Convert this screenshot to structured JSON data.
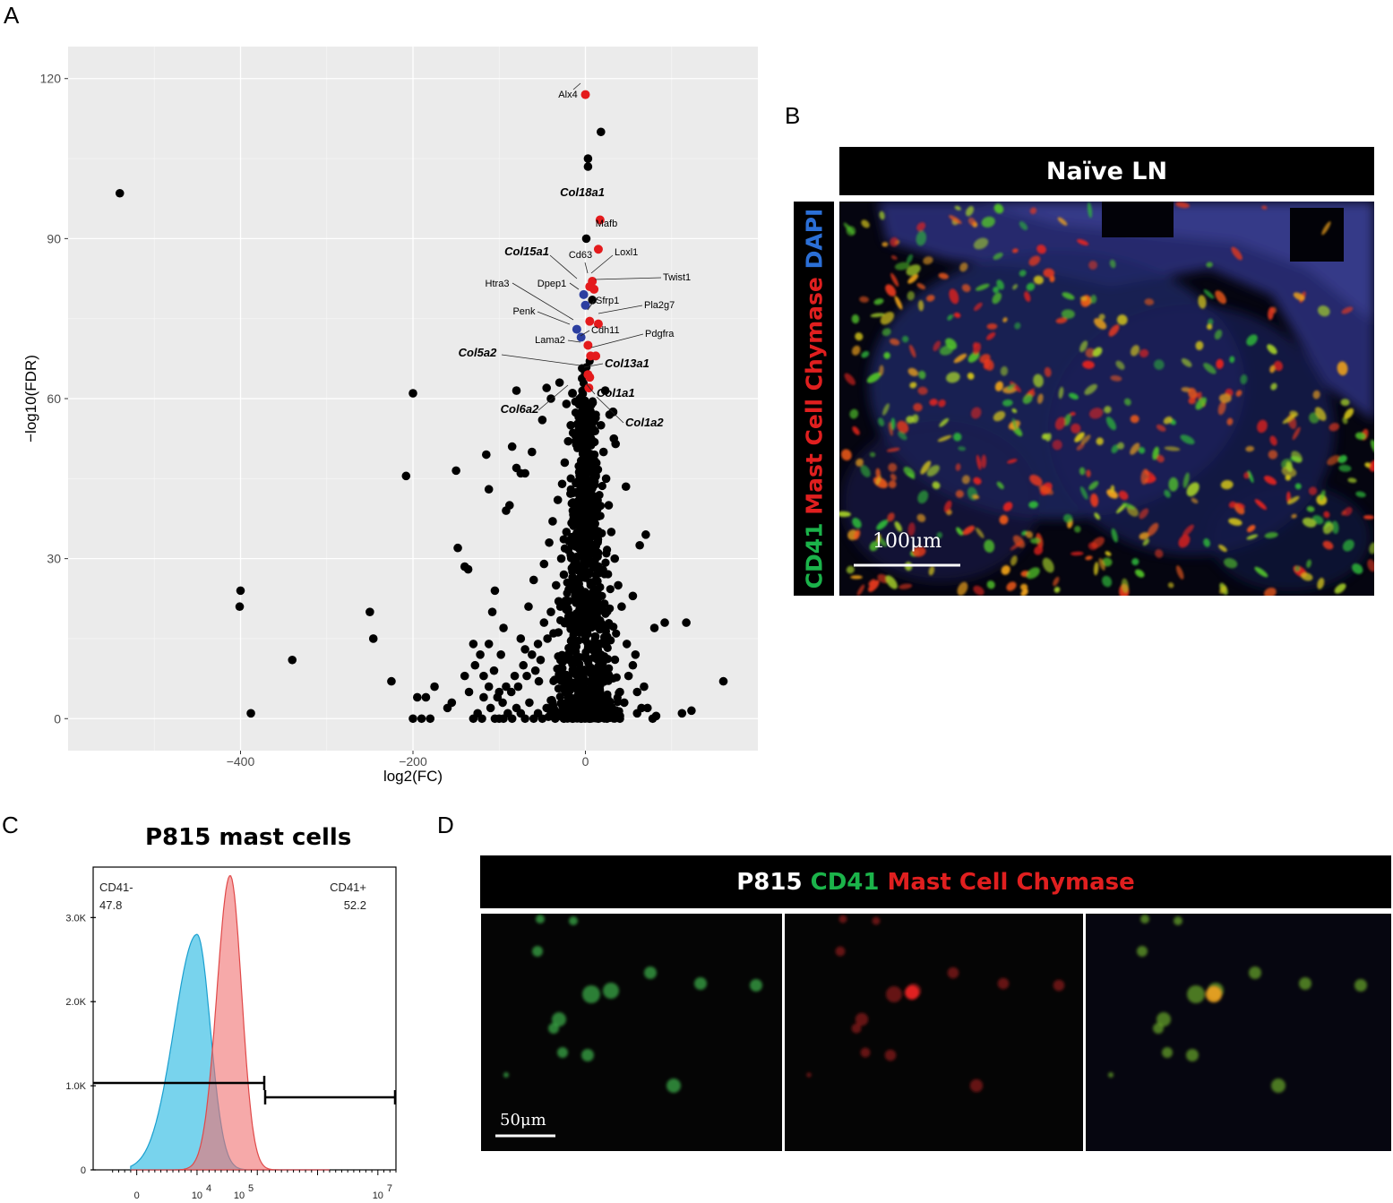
{
  "panels": {
    "a_letter": "A",
    "b_letter": "B",
    "c_letter": "C",
    "d_letter": "D"
  },
  "panel_b": {
    "header": "Naïve LN",
    "side_label_parts": [
      {
        "text": "CD41 ",
        "color": "#1bb34a"
      },
      {
        "text": "Mast Cell Chymase ",
        "color": "#e01f1f"
      },
      {
        "text": "DAPI",
        "color": "#2b6fd6"
      }
    ],
    "scale_label": "100μm"
  },
  "panel_c": {
    "title": "P815 mast cells",
    "gate_left_name": "CD41-",
    "gate_left_value": "47.8",
    "gate_right_name": "CD41+",
    "gate_right_value": "52.2",
    "y_ticks": [
      "0",
      "1.0K",
      "2.0K",
      "3.0K"
    ],
    "x_ticks": [
      {
        "base": "0",
        "exp": ""
      },
      {
        "base": "10",
        "exp": "4"
      },
      {
        "base": "10",
        "exp": "5"
      },
      {
        "base": "10",
        "exp": "7"
      }
    ],
    "colors": {
      "negative": "#3ec1e6",
      "positive": "#f07070"
    }
  },
  "panel_d": {
    "header_parts": [
      {
        "text": "P815 ",
        "color": "#ffffff"
      },
      {
        "text": "CD41 ",
        "color": "#1bb34a"
      },
      {
        "text": "Mast Cell Chymase",
        "color": "#e01f1f"
      }
    ],
    "scale_label": "50μm"
  },
  "chart_data": [
    {
      "type": "scatter",
      "title": "",
      "xlabel": "log2(FC)",
      "ylabel": "−log10(FDR)",
      "xlim": [
        -600,
        200
      ],
      "ylim": [
        -6,
        126
      ],
      "x_ticks": [
        -400,
        -200,
        0
      ],
      "y_ticks": [
        0,
        30,
        60,
        90,
        120
      ],
      "grid": true,
      "colors": {
        "default": "#000000",
        "highlight_red": "#e41a1c",
        "highlight_blue": "#2c3fa0"
      },
      "highlighted_genes": [
        {
          "label": "Alx4",
          "x": 0,
          "y": 117,
          "color": "red",
          "bold": false
        },
        {
          "label": "Col18a1",
          "x": 17,
          "y": 93.5,
          "color": "red",
          "bold": true
        },
        {
          "label": "Mafb",
          "x": 15,
          "y": 88,
          "color": "red",
          "bold": false
        },
        {
          "label": "Loxl1",
          "x": 8,
          "y": 82,
          "color": "red",
          "bold": false
        },
        {
          "label": "Cd63",
          "x": 5,
          "y": 81,
          "color": "red",
          "bold": false
        },
        {
          "label": "Col15a1",
          "x": -2,
          "y": 79.5,
          "color": "blue",
          "bold": true
        },
        {
          "label": "Twist1",
          "x": 10,
          "y": 80.5,
          "color": "red",
          "bold": false
        },
        {
          "label": "Htra3",
          "x": -10,
          "y": 73,
          "color": "blue",
          "bold": false
        },
        {
          "label": "Dpep1",
          "x": 0,
          "y": 77.5,
          "color": "blue",
          "bold": false
        },
        {
          "label": "Sfrp1",
          "x": 5,
          "y": 74.5,
          "color": "red",
          "bold": false
        },
        {
          "label": "Pla2g7",
          "x": 15,
          "y": 74,
          "color": "red",
          "bold": false
        },
        {
          "label": "Penk",
          "x": -5,
          "y": 71.5,
          "color": "blue",
          "bold": false
        },
        {
          "label": "Cdh11",
          "x": 3,
          "y": 70,
          "color": "red",
          "bold": false
        },
        {
          "label": "Lama2",
          "x": 6,
          "y": 68,
          "color": "red",
          "bold": false
        },
        {
          "label": "Pdgfra",
          "x": 12,
          "y": 68,
          "color": "red",
          "bold": false
        },
        {
          "label": "Col5a2",
          "x": 3,
          "y": 64.5,
          "color": "red",
          "bold": true
        },
        {
          "label": "Col13a1",
          "x": 5,
          "y": 64,
          "color": "red",
          "bold": true
        },
        {
          "label": "Col1a1",
          "x": 4,
          "y": 62,
          "color": "red",
          "bold": true
        },
        {
          "label": "Col6a2",
          "x": -15,
          "y": 61,
          "color": "black",
          "bold": true
        },
        {
          "label": "Col1a2",
          "x": 32,
          "y": 57.5,
          "color": "black",
          "bold": true
        }
      ],
      "points": [
        [
          -540,
          98.5
        ],
        [
          -200,
          61
        ],
        [
          -208,
          45.5
        ],
        [
          -400,
          24
        ],
        [
          -401,
          21
        ],
        [
          -250,
          20
        ],
        [
          -246,
          15
        ],
        [
          -340,
          11
        ],
        [
          -225,
          7
        ],
        [
          -388,
          1
        ],
        [
          -195,
          4
        ],
        [
          -185,
          4
        ],
        [
          -175,
          6
        ],
        [
          -200,
          0
        ],
        [
          -190,
          0
        ],
        [
          -180,
          0
        ],
        [
          -160,
          2
        ],
        [
          -155,
          3
        ],
        [
          -150,
          46.5
        ],
        [
          -148,
          32
        ],
        [
          -140,
          28.5
        ],
        [
          -136,
          28
        ],
        [
          -115,
          49.5
        ],
        [
          -112,
          43
        ],
        [
          -108,
          20
        ],
        [
          -105,
          24
        ],
        [
          -92,
          39
        ],
        [
          -88,
          40
        ],
        [
          -85,
          51
        ],
        [
          -80,
          61.5
        ],
        [
          -80,
          47
        ],
        [
          -75,
          46
        ],
        [
          -70,
          46
        ],
        [
          -62,
          50
        ],
        [
          -50,
          56
        ],
        [
          -45,
          62
        ],
        [
          -40,
          60
        ],
        [
          -30,
          63
        ],
        [
          -22,
          59
        ],
        [
          18,
          110
        ],
        [
          3,
          105
        ],
        [
          3,
          103.5
        ],
        [
          1,
          90
        ],
        [
          8,
          78.5
        ],
        [
          23,
          61.5
        ],
        [
          28,
          57
        ],
        [
          33,
          52.5
        ],
        [
          35,
          51.5
        ],
        [
          47,
          43.5
        ],
        [
          55,
          23
        ],
        [
          63,
          32.5
        ],
        [
          70,
          34.5
        ],
        [
          80,
          17
        ],
        [
          92,
          18
        ],
        [
          117,
          18
        ],
        [
          123,
          1.5
        ],
        [
          112,
          1
        ],
        [
          160,
          7
        ],
        [
          82,
          0.5
        ],
        [
          78,
          0
        ],
        [
          60,
          1
        ],
        [
          40,
          0
        ],
        [
          35,
          1
        ],
        [
          -100,
          0
        ],
        [
          -95,
          0
        ],
        [
          -90,
          1
        ],
        [
          -85,
          0
        ],
        [
          -80,
          2
        ],
        [
          -75,
          1
        ],
        [
          -70,
          0
        ],
        [
          -65,
          3
        ],
        [
          -60,
          0
        ],
        [
          -55,
          1
        ],
        [
          -50,
          0
        ],
        [
          -45,
          2
        ],
        [
          -40,
          1
        ],
        [
          -35,
          0
        ],
        [
          -30,
          1
        ],
        [
          -25,
          0
        ],
        [
          -20,
          1
        ],
        [
          -15,
          0
        ],
        [
          -10,
          2
        ],
        [
          -5,
          0
        ],
        [
          5,
          0
        ],
        [
          10,
          1
        ],
        [
          15,
          0
        ],
        [
          20,
          1
        ],
        [
          25,
          0
        ],
        [
          30,
          2
        ],
        [
          -130,
          0
        ],
        [
          -125,
          1
        ],
        [
          -120,
          0
        ],
        [
          -110,
          2
        ],
        [
          -105,
          0
        ],
        [
          -102,
          4
        ],
        [
          -96,
          3
        ],
        [
          -92,
          6
        ],
        [
          -86,
          5
        ],
        [
          -82,
          8
        ],
        [
          -78,
          6
        ],
        [
          -72,
          10
        ],
        [
          -68,
          8
        ],
        [
          -62,
          12
        ],
        [
          -58,
          9
        ],
        [
          -55,
          14
        ],
        [
          -52,
          11
        ],
        [
          -48,
          18
        ],
        [
          -44,
          15
        ],
        [
          -40,
          20
        ],
        [
          -37,
          16
        ],
        [
          -34,
          25
        ],
        [
          -31,
          22
        ],
        [
          -28,
          30
        ],
        [
          -25,
          27
        ],
        [
          -22,
          35
        ],
        [
          -130,
          14
        ],
        [
          -122,
          12
        ],
        [
          -118,
          8
        ],
        [
          -112,
          14
        ],
        [
          -98,
          12
        ],
        [
          -95,
          17
        ],
        [
          -75,
          15
        ],
        [
          -70,
          13
        ],
        [
          -66,
          21
        ],
        [
          -60,
          26
        ],
        [
          -54,
          7
        ],
        [
          -48,
          29
        ],
        [
          -42,
          33
        ],
        [
          -38,
          37
        ],
        [
          -32,
          41
        ],
        [
          -27,
          44
        ],
        [
          -24,
          48
        ],
        [
          -20,
          52
        ],
        [
          -17,
          55
        ],
        [
          -140,
          8
        ],
        [
          -135,
          5
        ],
        [
          -128,
          10
        ],
        [
          -118,
          4
        ],
        [
          -112,
          6
        ],
        [
          -106,
          9
        ],
        [
          -100,
          5
        ],
        [
          40,
          5
        ],
        [
          45,
          3
        ],
        [
          50,
          8
        ],
        [
          55,
          10
        ],
        [
          60,
          5
        ],
        [
          65,
          2
        ],
        [
          48,
          14
        ],
        [
          42,
          21
        ],
        [
          38,
          25
        ],
        [
          34,
          30
        ],
        [
          30,
          35
        ],
        [
          27,
          40
        ],
        [
          24,
          45
        ],
        [
          21,
          50
        ],
        [
          18,
          55
        ],
        [
          58,
          12
        ],
        [
          68,
          6
        ],
        [
          72,
          2
        ]
      ]
    },
    {
      "type": "area",
      "title": "P815 mast cells",
      "xlabel": "",
      "ylabel": "",
      "ylim": [
        0,
        3600
      ],
      "y_ticks": [
        0,
        1000,
        2000,
        3000
      ],
      "grid": false,
      "series": [
        {
          "name": "CD41-",
          "peak_x_log10": 4.0,
          "peak_count": 2800,
          "gate_percent": 47.8,
          "color": "#3ec1e6"
        },
        {
          "name": "CD41+",
          "peak_x_log10": 4.55,
          "peak_count": 3500,
          "gate_percent": 52.2,
          "color": "#f07070"
        }
      ]
    }
  ]
}
